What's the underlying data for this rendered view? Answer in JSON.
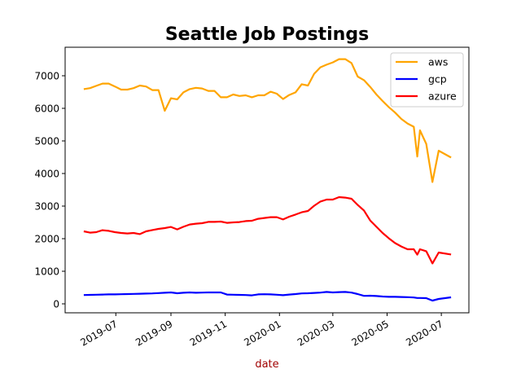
{
  "chart_data": {
    "type": "line",
    "title": "Seattle Job Postings",
    "xlabel": "date",
    "ylabel": "",
    "xlim": [
      "2019-05-05",
      "2020-08-01"
    ],
    "ylim": [
      -275,
      7875
    ],
    "yticks": [
      0,
      1000,
      2000,
      3000,
      4000,
      5000,
      6000,
      7000
    ],
    "xticks": [
      "2019-07",
      "2019-09",
      "2019-11",
      "2020-01",
      "2020-03",
      "2020-05",
      "2020-07"
    ],
    "grid": false,
    "legend_position": "top-right",
    "x": [
      "2019-05-26",
      "2019-06-02",
      "2019-06-09",
      "2019-06-16",
      "2019-06-23",
      "2019-06-30",
      "2019-07-07",
      "2019-07-14",
      "2019-07-21",
      "2019-07-28",
      "2019-08-04",
      "2019-08-11",
      "2019-08-18",
      "2019-08-25",
      "2019-09-01",
      "2019-09-08",
      "2019-09-15",
      "2019-09-22",
      "2019-09-29",
      "2019-10-06",
      "2019-10-13",
      "2019-10-20",
      "2019-10-27",
      "2019-11-03",
      "2019-11-10",
      "2019-11-17",
      "2019-11-24",
      "2019-12-01",
      "2019-12-08",
      "2019-12-15",
      "2019-12-22",
      "2019-12-29",
      "2020-01-05",
      "2020-01-12",
      "2020-01-19",
      "2020-01-26",
      "2020-02-02",
      "2020-02-09",
      "2020-02-16",
      "2020-02-23",
      "2020-03-01",
      "2020-03-08",
      "2020-03-15",
      "2020-03-22",
      "2020-03-29",
      "2020-04-05",
      "2020-04-12",
      "2020-04-19",
      "2020-04-26",
      "2020-05-03",
      "2020-05-10",
      "2020-05-17",
      "2020-05-24",
      "2020-05-31",
      "2020-06-04",
      "2020-06-07",
      "2020-06-14",
      "2020-06-21",
      "2020-06-28",
      "2020-07-12"
    ],
    "series": [
      {
        "name": "aws",
        "color": "#ffa500",
        "values": [
          6590,
          6620,
          6690,
          6760,
          6760,
          6670,
          6575,
          6575,
          6620,
          6700,
          6670,
          6560,
          6560,
          5925,
          6310,
          6275,
          6490,
          6590,
          6630,
          6610,
          6535,
          6535,
          6340,
          6340,
          6425,
          6380,
          6400,
          6340,
          6400,
          6400,
          6510,
          6450,
          6285,
          6410,
          6490,
          6740,
          6700,
          7060,
          7260,
          7340,
          7410,
          7510,
          7510,
          7390,
          6975,
          6865,
          6660,
          6425,
          6225,
          6035,
          5870,
          5675,
          5535,
          5435,
          4520,
          5325,
          4910,
          3740,
          4700,
          4490
        ]
      },
      {
        "name": "gcp",
        "color": "#0000ff",
        "values": [
          270,
          275,
          280,
          285,
          290,
          290,
          295,
          300,
          305,
          310,
          315,
          320,
          330,
          340,
          350,
          325,
          340,
          350,
          340,
          345,
          350,
          350,
          350,
          285,
          280,
          275,
          270,
          260,
          290,
          295,
          290,
          280,
          265,
          285,
          300,
          320,
          325,
          335,
          345,
          365,
          350,
          360,
          365,
          345,
          300,
          245,
          250,
          240,
          225,
          215,
          215,
          210,
          205,
          195,
          180,
          180,
          175,
          100,
          150,
          200
        ]
      },
      {
        "name": "azure",
        "color": "#ff0000",
        "values": [
          2225,
          2185,
          2200,
          2260,
          2240,
          2200,
          2175,
          2160,
          2175,
          2140,
          2225,
          2265,
          2300,
          2325,
          2360,
          2285,
          2365,
          2435,
          2460,
          2475,
          2515,
          2515,
          2525,
          2485,
          2500,
          2510,
          2540,
          2550,
          2610,
          2635,
          2660,
          2660,
          2590,
          2675,
          2740,
          2810,
          2850,
          3010,
          3140,
          3200,
          3200,
          3275,
          3260,
          3225,
          3035,
          2865,
          2560,
          2365,
          2175,
          2010,
          1865,
          1760,
          1675,
          1675,
          1510,
          1675,
          1615,
          1240,
          1575,
          1515
        ]
      }
    ],
    "xlabel_color": "#a00000"
  }
}
